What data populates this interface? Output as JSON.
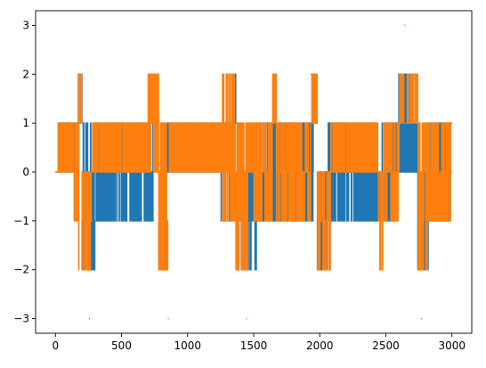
{
  "chart_data": {
    "type": "line",
    "title": "",
    "xlabel": "",
    "ylabel": "",
    "xlim": [
      -150,
      3150
    ],
    "ylim": [
      -3.3,
      3.3
    ],
    "grid": false,
    "x_ticks": [
      0,
      500,
      1000,
      1500,
      2000,
      2500,
      3000
    ],
    "y_ticks": [
      -3,
      -2,
      -1,
      0,
      1,
      2,
      3
    ],
    "x_tick_labels": [
      "0",
      "500",
      "1000",
      "1500",
      "2000",
      "2500",
      "3000"
    ],
    "y_tick_labels": [
      "−3",
      "−2",
      "−1",
      "0",
      "1",
      "2",
      "3"
    ],
    "series": [
      {
        "color": "#1f77b4",
        "segments": [
          {
            "start": 0,
            "end": 20,
            "values": [
              0
            ]
          },
          {
            "start": 20,
            "end": 150,
            "values": [
              0,
              1
            ]
          },
          {
            "start": 150,
            "end": 170,
            "values": [
              0,
              1
            ]
          },
          {
            "start": 170,
            "end": 200,
            "values": [
              1,
              2
            ]
          },
          {
            "start": 200,
            "end": 270,
            "values": [
              -2,
              -1,
              0,
              1,
              -1,
              -2
            ]
          },
          {
            "start": 255,
            "end": 262,
            "values": [
              -3
            ]
          },
          {
            "start": 270,
            "end": 300,
            "values": [
              -2,
              -1,
              0
            ]
          },
          {
            "start": 300,
            "end": 530,
            "values": [
              -1,
              0,
              1
            ]
          },
          {
            "start": 530,
            "end": 600,
            "values": [
              0,
              1,
              -1
            ]
          },
          {
            "start": 600,
            "end": 740,
            "values": [
              -1,
              0,
              1
            ]
          },
          {
            "start": 740,
            "end": 780,
            "values": [
              1,
              2
            ]
          },
          {
            "start": 780,
            "end": 840,
            "values": [
              -2,
              -1,
              0
            ]
          },
          {
            "start": 840,
            "end": 1250,
            "values": [
              0,
              1
            ]
          },
          {
            "start": 1250,
            "end": 1340,
            "values": [
              0,
              1,
              -1
            ]
          },
          {
            "start": 1340,
            "end": 1370,
            "values": [
              1,
              2
            ]
          },
          {
            "start": 1390,
            "end": 1460,
            "values": [
              -2,
              -1,
              0
            ]
          },
          {
            "start": 1460,
            "end": 1520,
            "values": [
              0,
              -1,
              -2,
              0
            ]
          },
          {
            "start": 1520,
            "end": 1950,
            "values": [
              0,
              1,
              -1
            ]
          },
          {
            "start": 1950,
            "end": 1980,
            "values": [
              1,
              2
            ]
          },
          {
            "start": 1980,
            "end": 2060,
            "values": [
              -2,
              -1,
              0
            ]
          },
          {
            "start": 2060,
            "end": 2430,
            "values": [
              0,
              1,
              -1
            ]
          },
          {
            "start": 2430,
            "end": 2470,
            "values": [
              -1,
              0
            ]
          },
          {
            "start": 2470,
            "end": 2590,
            "values": [
              0,
              1,
              -1
            ]
          },
          {
            "start": 2590,
            "end": 2700,
            "values": [
              1,
              2,
              0
            ]
          },
          {
            "start": 2700,
            "end": 2740,
            "values": [
              0,
              1
            ]
          },
          {
            "start": 2740,
            "end": 2820,
            "values": [
              -2,
              -1,
              0
            ]
          },
          {
            "start": 2765,
            "end": 2772,
            "values": [
              -3
            ]
          },
          {
            "start": 2820,
            "end": 2990,
            "values": [
              -1,
              0,
              1
            ]
          },
          {
            "start": 2990,
            "end": 3000,
            "values": [
              1
            ]
          }
        ]
      },
      {
        "color": "#ff7f0e",
        "segments": [
          {
            "start": 0,
            "end": 20,
            "values": [
              0
            ]
          },
          {
            "start": 20,
            "end": 140,
            "values": [
              0,
              1
            ]
          },
          {
            "start": 140,
            "end": 175,
            "values": [
              -1,
              0,
              1
            ]
          },
          {
            "start": 175,
            "end": 200,
            "values": [
              1,
              2,
              -2
            ]
          },
          {
            "start": 200,
            "end": 280,
            "values": [
              -2,
              -1,
              0
            ]
          },
          {
            "start": 280,
            "end": 550,
            "values": [
              0,
              1
            ]
          },
          {
            "start": 550,
            "end": 700,
            "values": [
              0,
              1
            ]
          },
          {
            "start": 700,
            "end": 780,
            "values": [
              0,
              1,
              2
            ]
          },
          {
            "start": 780,
            "end": 850,
            "values": [
              -2,
              -1,
              0,
              1
            ]
          },
          {
            "start": 850,
            "end": 858,
            "values": [
              -3
            ]
          },
          {
            "start": 858,
            "end": 1260,
            "values": [
              0,
              1
            ]
          },
          {
            "start": 1260,
            "end": 1360,
            "values": [
              0,
              1,
              2,
              -1
            ]
          },
          {
            "start": 1360,
            "end": 1460,
            "values": [
              -2,
              -1,
              0,
              1
            ]
          },
          {
            "start": 1440,
            "end": 1448,
            "values": [
              -3
            ]
          },
          {
            "start": 1460,
            "end": 1640,
            "values": [
              0,
              1,
              -1
            ]
          },
          {
            "start": 1640,
            "end": 1670,
            "values": [
              1,
              2
            ]
          },
          {
            "start": 1670,
            "end": 1930,
            "values": [
              0,
              1,
              -1
            ]
          },
          {
            "start": 1930,
            "end": 1980,
            "values": [
              1,
              2
            ]
          },
          {
            "start": 1980,
            "end": 2080,
            "values": [
              -2,
              -1,
              0
            ]
          },
          {
            "start": 2080,
            "end": 2440,
            "values": [
              0,
              1
            ]
          },
          {
            "start": 2440,
            "end": 2480,
            "values": [
              -2,
              -1,
              0
            ]
          },
          {
            "start": 2480,
            "end": 2600,
            "values": [
              0,
              1,
              -1
            ]
          },
          {
            "start": 2600,
            "end": 2640,
            "values": [
              1,
              2
            ]
          },
          {
            "start": 2640,
            "end": 2648,
            "values": [
              3
            ]
          },
          {
            "start": 2648,
            "end": 2740,
            "values": [
              1,
              2
            ]
          },
          {
            "start": 2740,
            "end": 2830,
            "values": [
              -2,
              -1,
              0,
              1
            ]
          },
          {
            "start": 2830,
            "end": 2990,
            "values": [
              0,
              1,
              -1
            ]
          },
          {
            "start": 2990,
            "end": 3000,
            "values": [
              0
            ]
          }
        ]
      }
    ]
  }
}
